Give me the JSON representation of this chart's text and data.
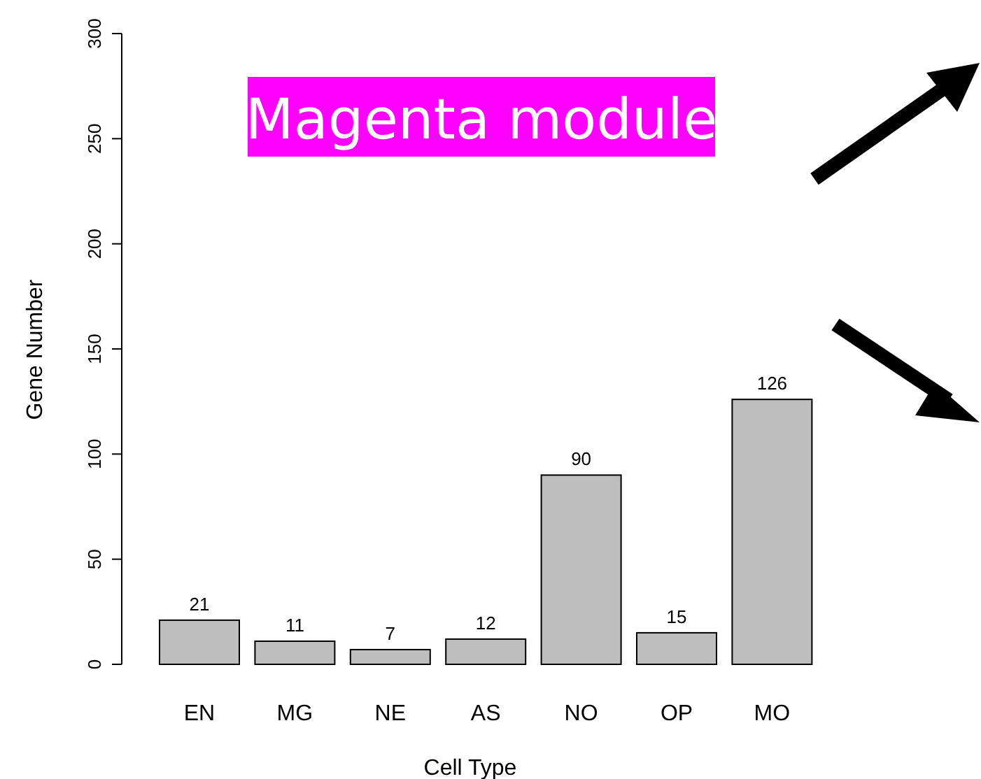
{
  "chart_data": {
    "type": "bar",
    "title": "Magenta module",
    "xlabel": "Cell Type",
    "ylabel": "Gene Number",
    "categories": [
      "EN",
      "MG",
      "NE",
      "AS",
      "NO",
      "OP",
      "MO"
    ],
    "values": [
      21,
      11,
      7,
      12,
      90,
      15,
      126
    ],
    "color": "#bebebe",
    "ylim": [
      0,
      300
    ],
    "yticks": [
      0,
      50,
      100,
      150,
      200,
      250,
      300
    ],
    "data_labels": true
  }
}
